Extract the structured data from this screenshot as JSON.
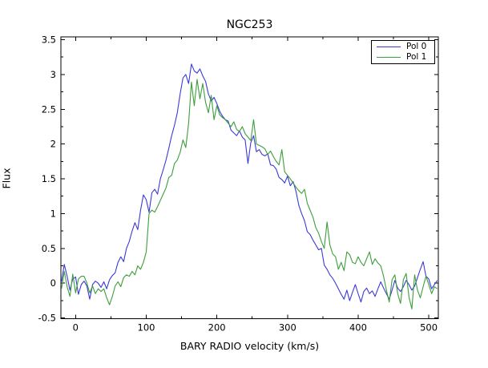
{
  "figure": {
    "background": "#ffffff",
    "frame_color": "#000000"
  },
  "chart_data": {
    "type": "line",
    "title": "NGC253",
    "xlabel": "BARY RADIO velocity (km/s)",
    "ylabel": "Flux",
    "xlim": [
      -20.8,
      513.5
    ],
    "ylim": [
      -0.51,
      3.54
    ],
    "xticks": [
      0,
      100,
      200,
      300,
      400,
      500
    ],
    "xtick_labels": [
      "0",
      "100",
      "200",
      "300",
      "400",
      "500"
    ],
    "yticks": [
      3.5,
      3,
      2.5,
      2,
      1.5,
      1,
      0.5,
      0,
      -0.5
    ],
    "ytick_labels": [
      "3.5",
      "3",
      "2.5",
      "2",
      "1.5",
      "1",
      "0.5",
      "0",
      "-0.5"
    ],
    "x_minor_step": 50,
    "y_minor_step": 0.25,
    "grid": false,
    "legend_position": "upper-right",
    "x": [
      -20,
      -16,
      -12,
      -8,
      -4,
      0,
      4,
      8,
      12,
      16,
      20,
      24,
      28,
      32,
      36,
      40,
      44,
      48,
      52,
      56,
      60,
      64,
      68,
      72,
      76,
      80,
      84,
      88,
      92,
      96,
      100,
      104,
      108,
      112,
      116,
      120,
      124,
      128,
      132,
      136,
      140,
      144,
      148,
      152,
      156,
      160,
      164,
      168,
      172,
      176,
      180,
      184,
      188,
      192,
      196,
      200,
      204,
      208,
      212,
      216,
      220,
      224,
      228,
      232,
      236,
      240,
      244,
      248,
      252,
      256,
      260,
      264,
      268,
      272,
      276,
      280,
      284,
      288,
      292,
      296,
      300,
      304,
      308,
      312,
      316,
      320,
      324,
      328,
      332,
      336,
      340,
      344,
      348,
      352,
      356,
      360,
      364,
      368,
      372,
      376,
      380,
      384,
      388,
      392,
      396,
      400,
      404,
      408,
      412,
      416,
      420,
      424,
      428,
      432,
      436,
      440,
      444,
      448,
      452,
      456,
      460,
      464,
      468,
      472,
      476,
      480,
      484,
      488,
      492,
      496,
      500,
      504,
      508,
      512
    ],
    "series": [
      {
        "name": "Pol 0",
        "color": "#3a3ad9",
        "values": [
          0.02,
          0.27,
          0.1,
          -0.1,
          0.06,
          0.09,
          -0.16,
          -0.02,
          0.03,
          -0.04,
          -0.23,
          -0.02,
          0.03,
          0.0,
          -0.06,
          0.02,
          -0.08,
          0.05,
          0.11,
          0.15,
          0.3,
          0.38,
          0.31,
          0.5,
          0.6,
          0.75,
          0.87,
          0.77,
          1.05,
          1.27,
          1.2,
          1.02,
          1.3,
          1.35,
          1.28,
          1.5,
          1.63,
          1.77,
          1.94,
          2.12,
          2.27,
          2.45,
          2.72,
          2.95,
          3.0,
          2.87,
          3.15,
          3.05,
          3.02,
          3.08,
          2.98,
          2.9,
          2.72,
          2.62,
          2.67,
          2.58,
          2.47,
          2.4,
          2.35,
          2.33,
          2.2,
          2.16,
          2.12,
          2.19,
          2.1,
          2.06,
          1.72,
          2.02,
          2.12,
          1.89,
          1.92,
          1.85,
          1.83,
          1.86,
          1.7,
          1.69,
          1.64,
          1.52,
          1.49,
          1.44,
          1.54,
          1.4,
          1.46,
          1.32,
          1.12,
          1.0,
          0.9,
          0.74,
          0.7,
          0.62,
          0.55,
          0.48,
          0.5,
          0.26,
          0.2,
          0.12,
          0.07,
          0.0,
          -0.08,
          -0.16,
          -0.23,
          -0.1,
          -0.25,
          -0.13,
          -0.02,
          -0.15,
          -0.27,
          -0.12,
          -0.07,
          -0.15,
          -0.11,
          -0.19,
          -0.08,
          0.02,
          -0.07,
          -0.15,
          -0.23,
          -0.1,
          0.04,
          -0.07,
          -0.12,
          -0.05,
          0.04,
          -0.02,
          -0.1,
          -0.04,
          0.08,
          0.2,
          0.31,
          0.1,
          0.06,
          -0.08,
          -0.02,
          0.04
        ]
      },
      {
        "name": "Pol 1",
        "color": "#3d9e3d",
        "values": [
          -0.08,
          0.17,
          -0.05,
          -0.19,
          0.13,
          -0.14,
          0.06,
          0.1,
          0.1,
          0.0,
          -0.14,
          -0.04,
          -0.15,
          -0.08,
          -0.12,
          -0.08,
          -0.21,
          -0.31,
          -0.19,
          -0.04,
          0.02,
          -0.05,
          0.08,
          0.12,
          0.1,
          0.17,
          0.12,
          0.25,
          0.2,
          0.3,
          0.45,
          1.0,
          1.05,
          1.02,
          1.1,
          1.19,
          1.28,
          1.37,
          1.52,
          1.55,
          1.72,
          1.77,
          1.88,
          2.06,
          1.95,
          2.3,
          2.89,
          2.55,
          2.93,
          2.65,
          2.87,
          2.6,
          2.45,
          2.7,
          2.35,
          2.55,
          2.42,
          2.38,
          2.35,
          2.3,
          2.25,
          2.32,
          2.21,
          2.18,
          2.25,
          2.15,
          2.1,
          2.05,
          2.35,
          2.0,
          1.98,
          1.96,
          1.93,
          1.85,
          1.9,
          1.82,
          1.75,
          1.7,
          1.92,
          1.6,
          1.55,
          1.5,
          1.44,
          1.38,
          1.33,
          1.29,
          1.35,
          1.15,
          1.05,
          0.95,
          0.8,
          0.72,
          0.6,
          0.5,
          0.88,
          0.55,
          0.42,
          0.38,
          0.2,
          0.3,
          0.18,
          0.45,
          0.41,
          0.3,
          0.28,
          0.38,
          0.3,
          0.25,
          0.35,
          0.45,
          0.27,
          0.35,
          0.29,
          0.25,
          0.1,
          -0.1,
          -0.27,
          0.05,
          0.12,
          -0.15,
          -0.29,
          0.05,
          0.14,
          -0.2,
          -0.37,
          0.12,
          -0.1,
          -0.21,
          -0.05,
          0.1,
          -0.02,
          -0.15,
          -0.05,
          -0.08
        ]
      }
    ]
  }
}
